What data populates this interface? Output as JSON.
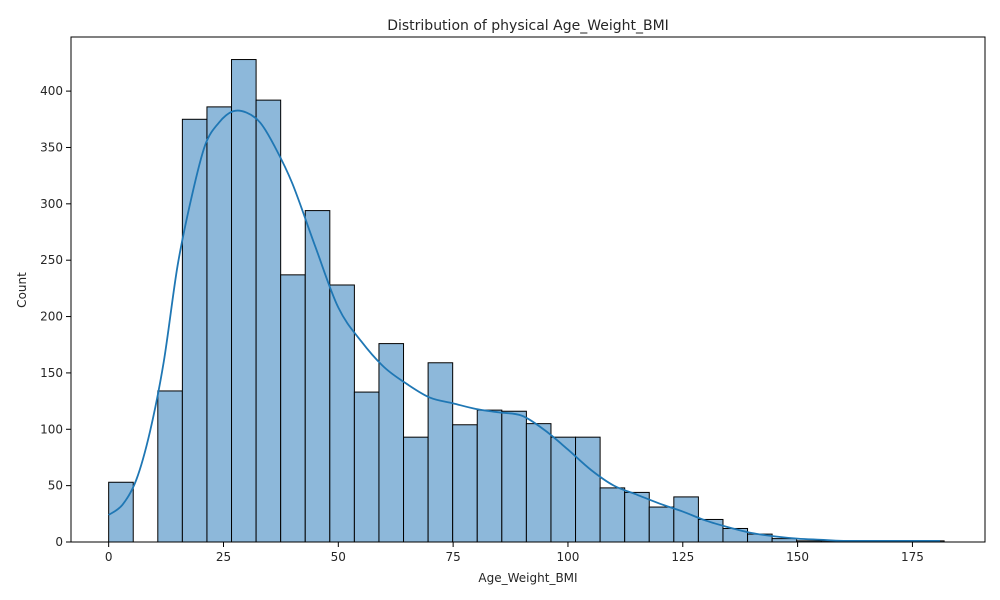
{
  "chart_data": {
    "type": "bar",
    "subtype": "histogram",
    "title": "Distribution of physical Age_Weight_BMI",
    "xlabel": "Age_Weight_BMI",
    "ylabel": "Count",
    "xlim": [
      -8.2,
      190.8
    ],
    "ylim": [
      0,
      448
    ],
    "xticks": [
      0,
      25,
      50,
      75,
      100,
      125,
      150,
      175
    ],
    "yticks": [
      0,
      50,
      100,
      150,
      200,
      250,
      300,
      350,
      400
    ],
    "bin_width": 5.35,
    "bin_start": 0,
    "counts": [
      53,
      0,
      134,
      375,
      386,
      428,
      392,
      237,
      294,
      228,
      133,
      176,
      93,
      159,
      104,
      117,
      116,
      105,
      93,
      93,
      48,
      44,
      31,
      40,
      20,
      12,
      7,
      3,
      1,
      1,
      1,
      1,
      1,
      1
    ],
    "kde": {
      "x": [
        0,
        3,
        6,
        9,
        12,
        15,
        18,
        21,
        24,
        27,
        30,
        33,
        36,
        40,
        45,
        50,
        55,
        60,
        65,
        70,
        75,
        80,
        85,
        90,
        95,
        100,
        105,
        110,
        115,
        120,
        125,
        130,
        135,
        140,
        145,
        150,
        155,
        160,
        170,
        181
      ],
      "y": [
        24,
        33,
        55,
        98,
        160,
        245,
        305,
        352,
        372,
        382,
        381,
        372,
        352,
        318,
        262,
        208,
        178,
        155,
        140,
        128,
        123,
        118,
        115,
        112,
        99,
        82,
        64,
        50,
        42,
        34,
        27,
        19,
        13,
        8,
        5,
        3,
        2,
        1,
        1,
        1
      ]
    },
    "colors": {
      "bar_fill": "#8db8da",
      "bar_edge": "#000000",
      "kde_line": "#1f77b4"
    },
    "grid": false,
    "legend": "none"
  }
}
